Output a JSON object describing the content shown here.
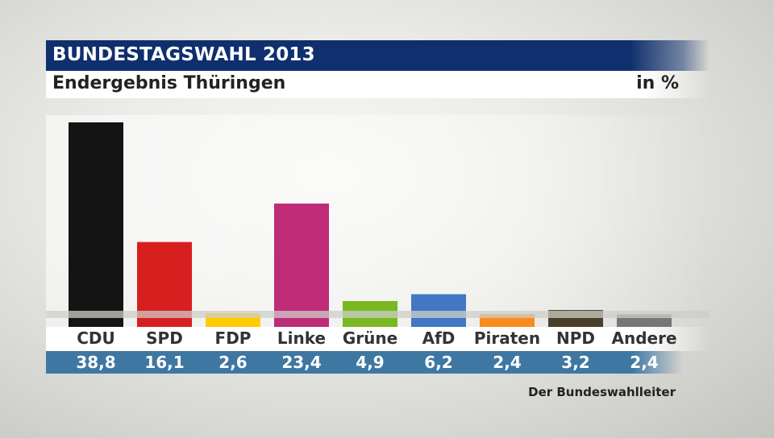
{
  "header": {
    "title": "BUNDESTAGSWAHL 2013",
    "subtitle": "Endergebnis Thüringen",
    "unit": "in %"
  },
  "source": "Der Bundeswahlleiter",
  "chart_data": {
    "type": "bar",
    "title": "BUNDESTAGSWAHL 2013",
    "subtitle": "Endergebnis Thüringen",
    "ylabel": "in %",
    "xlabel": "",
    "categories": [
      "CDU",
      "SPD",
      "FDP",
      "Linke",
      "Grüne",
      "AfD",
      "Piraten",
      "NPD",
      "Andere"
    ],
    "values": [
      38.8,
      16.1,
      2.6,
      23.4,
      4.9,
      6.2,
      2.4,
      3.2,
      2.4
    ],
    "value_labels": [
      "38,8",
      "16,1",
      "2,6",
      "23,4",
      "4,9",
      "6,2",
      "2,4",
      "3,2",
      "2,4"
    ],
    "colors": [
      "#141414",
      "#d81f1f",
      "#ffcc00",
      "#be2b77",
      "#79b820",
      "#4277c4",
      "#f78b1c",
      "#4a4027",
      "#777777"
    ],
    "ylim": [
      0,
      38.8
    ],
    "grid": false,
    "legend": "none"
  }
}
